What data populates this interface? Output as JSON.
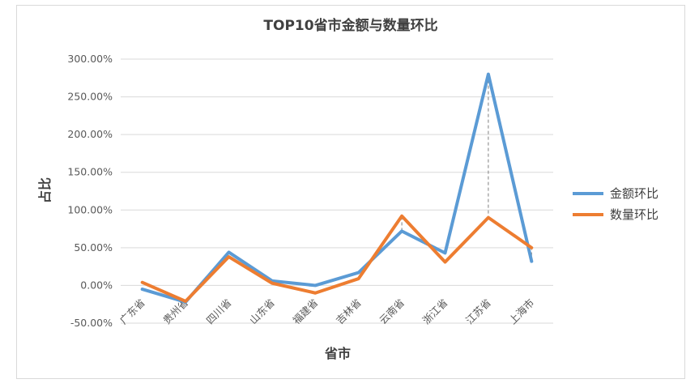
{
  "chart_data": {
    "type": "line",
    "title": "TOP10省市金额与数量环比",
    "xlabel": "省市",
    "ylabel": "占比",
    "categories": [
      "广东省",
      "贵州省",
      "四川省",
      "山东省",
      "福建省",
      "吉林省",
      "云南省",
      "浙江省",
      "江苏省",
      "上海市"
    ],
    "series": [
      {
        "name": "金额环比",
        "color": "#5B9BD5",
        "values": [
          -5,
          -22,
          44,
          6,
          0,
          17,
          72,
          43,
          280,
          32
        ]
      },
      {
        "name": "数量环比",
        "color": "#ED7D31",
        "values": [
          4,
          -21,
          38,
          3,
          -10,
          9,
          92,
          31,
          90,
          50
        ]
      }
    ],
    "ylim": [
      -50,
      300
    ],
    "yticks": [
      "-50.00%",
      "0.00%",
      "50.00%",
      "100.00%",
      "150.00%",
      "200.00%",
      "250.00%",
      "300.00%"
    ],
    "ytick_values": [
      -50,
      0,
      50,
      100,
      150,
      200,
      250,
      300
    ],
    "grid": true,
    "legend_position": "right",
    "annotation": "dashed drop line at 江苏省 from 金额环比 peak to 数量环比"
  }
}
